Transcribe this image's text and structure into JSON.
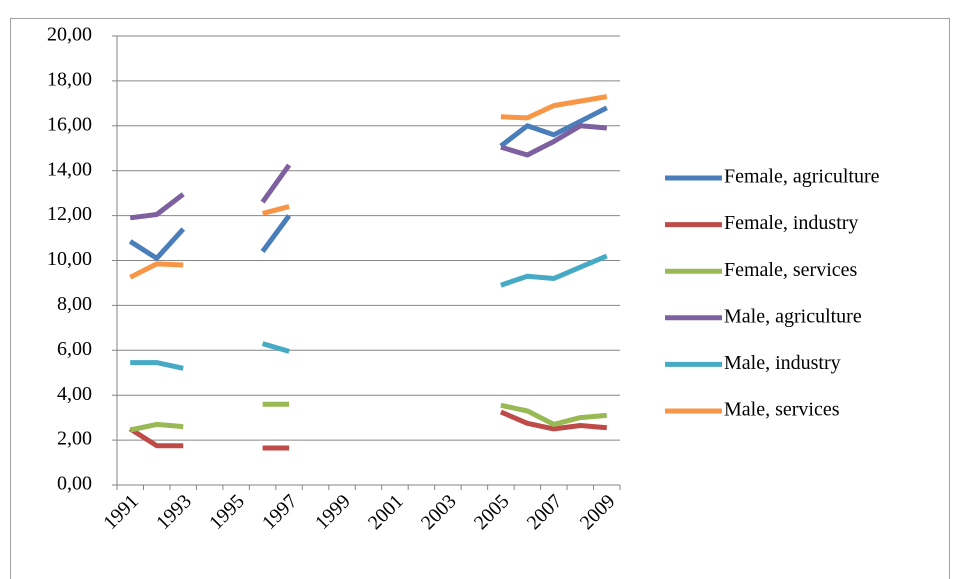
{
  "chart_data": {
    "type": "line",
    "categories": [
      "1991",
      null,
      "1993",
      null,
      "1995",
      null,
      "1997",
      null,
      "1999",
      null,
      "2001",
      null,
      "2003",
      null,
      "2005",
      null,
      "2007",
      null,
      "2009"
    ],
    "series": [
      {
        "name": "Female, agriculture",
        "color": "#4a7ebb",
        "values": [
          10.85,
          10.1,
          11.4,
          null,
          null,
          10.4,
          12.0,
          null,
          null,
          null,
          null,
          null,
          null,
          null,
          15.1,
          16.0,
          15.6,
          16.2,
          16.8
        ]
      },
      {
        "name": "Female, industry",
        "color": "#be4b48",
        "values": [
          2.5,
          1.75,
          1.75,
          null,
          null,
          1.65,
          1.65,
          null,
          null,
          null,
          null,
          null,
          null,
          null,
          3.25,
          2.75,
          2.5,
          2.65,
          2.55
        ]
      },
      {
        "name": "Female, services",
        "color": "#98b954",
        "values": [
          2.45,
          2.7,
          2.6,
          null,
          null,
          3.6,
          3.6,
          null,
          null,
          null,
          null,
          null,
          null,
          null,
          3.55,
          3.3,
          2.7,
          3.0,
          3.1
        ]
      },
      {
        "name": "Male, agriculture",
        "color": "#7d60a0",
        "values": [
          11.9,
          12.05,
          12.95,
          null,
          null,
          12.6,
          14.25,
          null,
          null,
          null,
          null,
          null,
          null,
          null,
          15.05,
          14.7,
          15.3,
          16.0,
          15.9
        ]
      },
      {
        "name": "Male, industry",
        "color": "#46aac5",
        "values": [
          5.45,
          5.45,
          5.2,
          null,
          null,
          6.3,
          5.95,
          null,
          null,
          null,
          null,
          null,
          null,
          null,
          8.9,
          9.3,
          9.2,
          9.7,
          10.2
        ]
      },
      {
        "name": "Male, services",
        "color": "#f79646",
        "values": [
          9.25,
          9.85,
          9.8,
          null,
          null,
          12.1,
          12.4,
          null,
          null,
          null,
          null,
          null,
          null,
          null,
          16.4,
          16.35,
          16.9,
          17.1,
          17.3
        ]
      }
    ],
    "ylim": [
      0,
      20
    ],
    "yticks": [
      {
        "value": 0,
        "label": "0,00"
      },
      {
        "value": 2,
        "label": "2,00"
      },
      {
        "value": 4,
        "label": "4,00"
      },
      {
        "value": 6,
        "label": "6,00"
      },
      {
        "value": 8,
        "label": "8,00"
      },
      {
        "value": 10,
        "label": "10,00"
      },
      {
        "value": 12,
        "label": "12,00"
      },
      {
        "value": 14,
        "label": "14,00"
      },
      {
        "value": 16,
        "label": "16,00"
      },
      {
        "value": 18,
        "label": "18,00"
      },
      {
        "value": 20,
        "label": "20,00"
      }
    ],
    "grid": true,
    "legend": "right"
  }
}
